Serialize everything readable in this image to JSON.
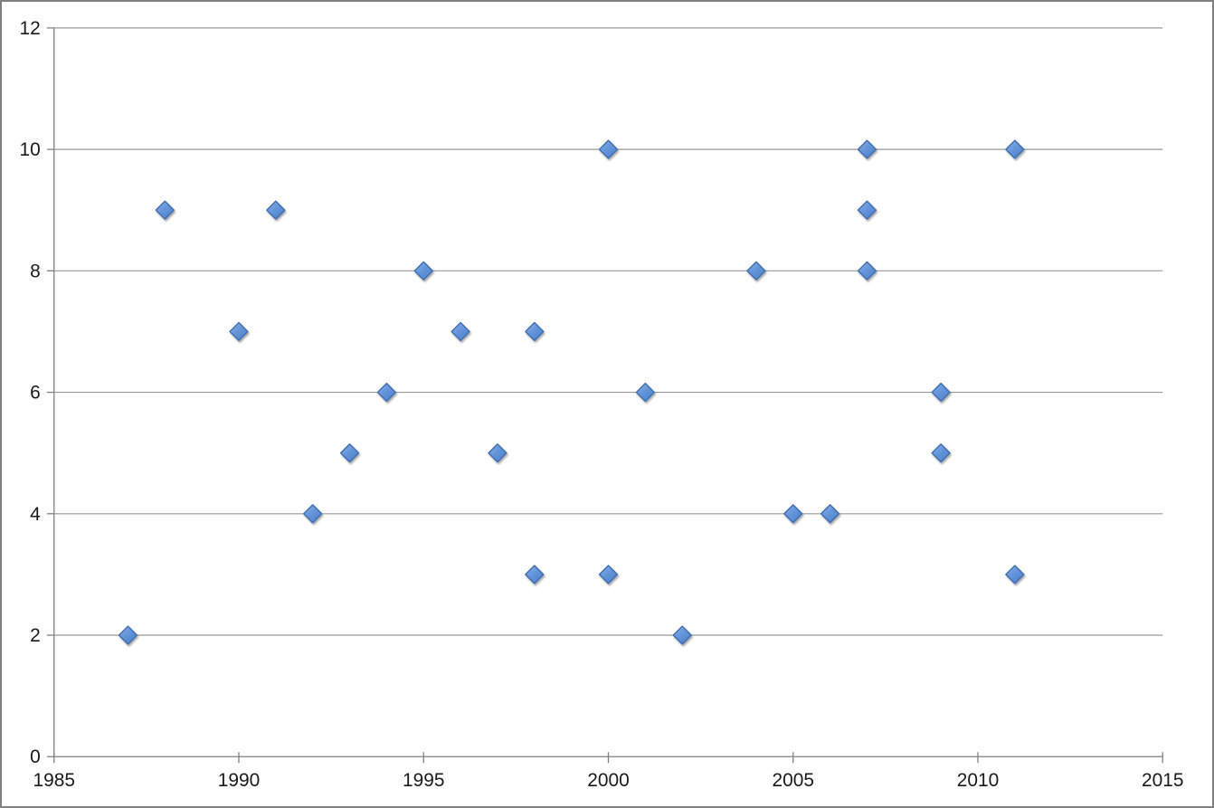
{
  "chart_data": {
    "type": "scatter",
    "marker": "diamond",
    "legend": "none",
    "grid": "horizontal",
    "xlim": [
      1985,
      2015
    ],
    "ylim": [
      0,
      12
    ],
    "x_ticks": [
      "1985",
      "1990",
      "1995",
      "2000",
      "2005",
      "2010",
      "2015"
    ],
    "x_tick_values": [
      1985,
      1990,
      1995,
      2000,
      2005,
      2010,
      2015
    ],
    "y_ticks": [
      "0",
      "2",
      "4",
      "6",
      "8",
      "10",
      "12"
    ],
    "y_tick_values": [
      0,
      2,
      4,
      6,
      8,
      10,
      12
    ],
    "points": [
      {
        "x": 1987,
        "y": 2
      },
      {
        "x": 1988,
        "y": 9
      },
      {
        "x": 1990,
        "y": 7
      },
      {
        "x": 1991,
        "y": 9
      },
      {
        "x": 1992,
        "y": 4
      },
      {
        "x": 1993,
        "y": 5
      },
      {
        "x": 1994,
        "y": 6
      },
      {
        "x": 1995,
        "y": 8
      },
      {
        "x": 1996,
        "y": 7
      },
      {
        "x": 1997,
        "y": 5
      },
      {
        "x": 1998,
        "y": 3
      },
      {
        "x": 1998,
        "y": 7
      },
      {
        "x": 2000,
        "y": 3
      },
      {
        "x": 2000,
        "y": 10
      },
      {
        "x": 2001,
        "y": 6
      },
      {
        "x": 2002,
        "y": 2
      },
      {
        "x": 2004,
        "y": 8
      },
      {
        "x": 2005,
        "y": 4
      },
      {
        "x": 2006,
        "y": 4
      },
      {
        "x": 2007,
        "y": 8
      },
      {
        "x": 2007,
        "y": 9
      },
      {
        "x": 2007,
        "y": 10
      },
      {
        "x": 2009,
        "y": 5
      },
      {
        "x": 2009,
        "y": 6
      },
      {
        "x": 2011,
        "y": 3
      },
      {
        "x": 2011,
        "y": 10
      }
    ],
    "colors": {
      "marker_fill_light": "#8FB0E4",
      "marker_fill_mid": "#6495DA",
      "marker_fill_dark": "#4E82CB",
      "marker_border": "#3F6DAE",
      "gridline": "#999999",
      "axis": "#808080",
      "tick_label": "#1A1A1A",
      "frame_border": "#808080",
      "background": "#FFFFFF"
    }
  }
}
